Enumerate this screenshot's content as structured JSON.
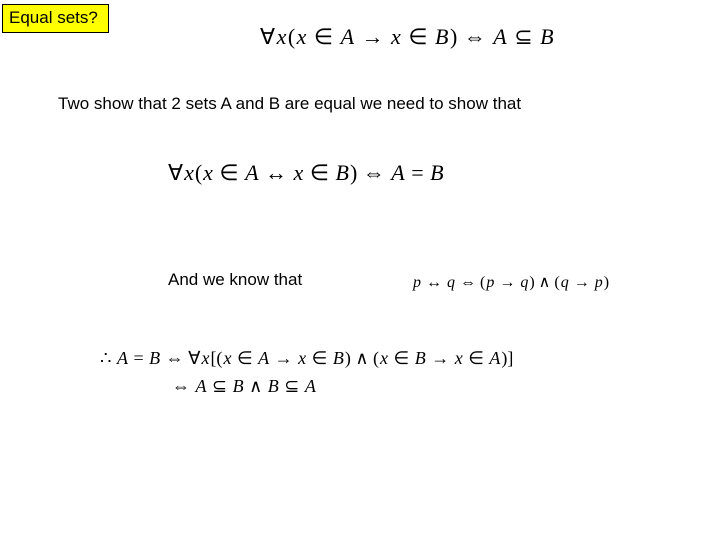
{
  "colors": {
    "title_bg": "#ffff00",
    "title_border": "#000000",
    "page_bg": "#ffffff",
    "text": "#000000"
  },
  "fonts": {
    "body_family": "Comic Sans MS",
    "math_family": "Times New Roman",
    "body_size_pt": 13,
    "math_top_size_pt": 17,
    "math_mid_size_pt": 17,
    "math_know_size_pt": 12,
    "math_bottom_size_pt": 14
  },
  "title": "Equal sets?",
  "formula_subset": "∀x(x ∈ A → x ∈ B) ⇔ A ⊆ B",
  "body_text": "Two show that 2 sets A and B are equal we need to show that",
  "formula_equal_def": "∀x(x ∈ A ↔ x ∈ B) ⇔ A = B",
  "knows_text": "And we know that",
  "formula_biconditional": "p ↔ q ⇔ (p → q) ∧ (q → p)",
  "formula_conclusion_line1": "∴ A = B ⇔ ∀x[(x ∈ A → x ∈ B) ∧ (x ∈ B → x ∈ A)]",
  "formula_conclusion_line2": "⇔ A ⊆ B ∧ B ⊆ A"
}
